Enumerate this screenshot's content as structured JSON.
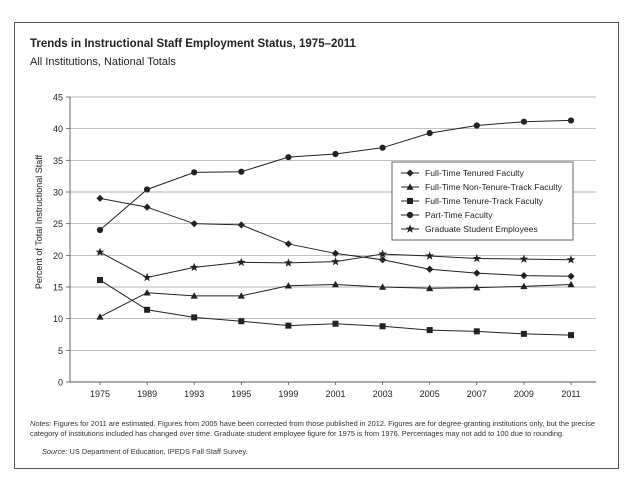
{
  "title": "Trends in Instructional Staff Employment Status, 1975–2011",
  "subtitle": "All Institutions, National Totals",
  "notes_label": "Notes:",
  "notes_text": " Figures for 2011 are estimated. Figures from 2005 have been corrected from those published in 2012. Figures are for degree-granting institutions only, but the precise category of institutions included has changed over time. Graduate student employee figure for 1975 is from 1976. Percentages may not add to 100 due to rounding.",
  "source_label": "Source:",
  "source_text": " US Department of Education, IPEDS Fall Staff Survey.",
  "chart_data": {
    "type": "line",
    "title": "Trends in Instructional Staff Employment Status, 1975–2011",
    "subtitle": "All Institutions, National Totals",
    "xlabel": "",
    "ylabel": "Percent of Total Instructional Staff",
    "categories": [
      "1975",
      "1989",
      "1993",
      "1995",
      "1999",
      "2001",
      "2003",
      "2005",
      "2007",
      "2009",
      "2011"
    ],
    "ylim": [
      0,
      45
    ],
    "yticks": [
      0,
      5,
      10,
      15,
      20,
      25,
      30,
      35,
      40,
      45
    ],
    "grid": "horizontal",
    "legend_position": "right",
    "color": "#222222",
    "series": [
      {
        "name": "Full-Time Tenured Faculty",
        "marker": "diamond",
        "values": [
          29.0,
          27.6,
          25.0,
          24.8,
          21.8,
          20.3,
          19.3,
          17.8,
          17.2,
          16.8,
          16.7
        ]
      },
      {
        "name": "Full-Time Non-Tenure-Track Faculty",
        "marker": "triangle",
        "values": [
          10.3,
          14.1,
          13.6,
          13.6,
          15.2,
          15.4,
          15.0,
          14.8,
          14.9,
          15.1,
          15.4
        ]
      },
      {
        "name": "Full-Time Tenure-Track Faculty",
        "marker": "square",
        "values": [
          16.1,
          11.4,
          10.2,
          9.6,
          8.9,
          9.2,
          8.8,
          8.2,
          8.0,
          7.6,
          7.4
        ]
      },
      {
        "name": "Part-Time Faculty",
        "marker": "circle",
        "values": [
          24.0,
          30.4,
          33.1,
          33.2,
          35.5,
          36.0,
          37.0,
          39.3,
          40.5,
          41.1,
          41.3
        ]
      },
      {
        "name": "Graduate Student Employees",
        "marker": "star",
        "values": [
          20.5,
          16.5,
          18.1,
          18.9,
          18.8,
          19.0,
          20.2,
          19.9,
          19.5,
          19.4,
          19.3
        ]
      }
    ]
  }
}
